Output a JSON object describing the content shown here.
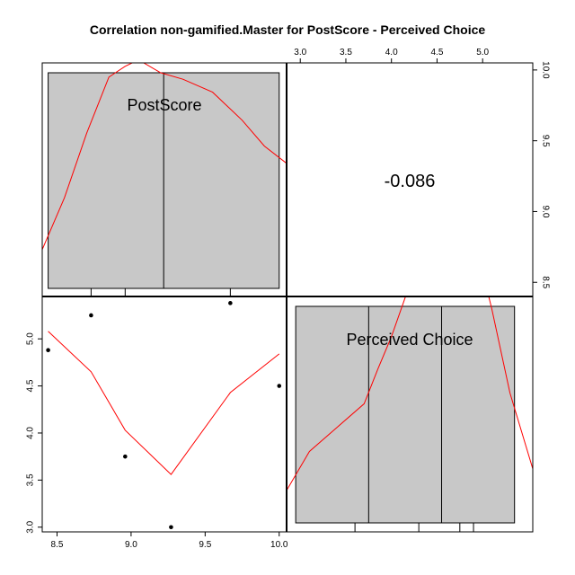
{
  "title": "Correlation non-gamified.Master for PostScore - Perceived Choice",
  "chart_data": {
    "type": "scatter",
    "layout": "pairs-matrix",
    "variables": [
      "PostScore",
      "Perceived Choice"
    ],
    "correlation": "-0.086",
    "scatter": {
      "x_range": [
        8.4,
        10.05
      ],
      "y_range": [
        2.95,
        5.45
      ],
      "x_ticks": [
        8.5,
        9.0,
        9.5,
        10.0
      ],
      "x_tick_labels": [
        "8.5",
        "9.0",
        "9.5",
        "10.0"
      ],
      "y_ticks": [
        3.0,
        3.5,
        4.0,
        4.5,
        5.0
      ],
      "y_tick_labels": [
        "3.0",
        "3.5",
        "4.0",
        "4.5",
        "5.0"
      ],
      "points": [
        {
          "x": 8.44,
          "y": 4.88
        },
        {
          "x": 8.73,
          "y": 5.25
        },
        {
          "x": 8.96,
          "y": 3.75
        },
        {
          "x": 9.27,
          "y": 3.0
        },
        {
          "x": 9.67,
          "y": 5.38
        },
        {
          "x": 10.0,
          "y": 4.5
        }
      ],
      "smooth_line": [
        {
          "x": 8.44,
          "y": 5.08
        },
        {
          "x": 8.73,
          "y": 4.65
        },
        {
          "x": 8.96,
          "y": 4.03
        },
        {
          "x": 9.27,
          "y": 3.56
        },
        {
          "x": 9.67,
          "y": 4.43
        },
        {
          "x": 10.0,
          "y": 4.84
        }
      ]
    },
    "top_axis": {
      "range": [
        2.85,
        5.55
      ],
      "ticks": [
        3.0,
        3.5,
        4.0,
        4.5,
        5.0
      ],
      "tick_labels": [
        "3.0",
        "3.5",
        "4.0",
        "4.5",
        "5.0"
      ]
    },
    "right_axis": {
      "range": [
        8.4,
        10.05
      ],
      "ticks": [
        8.5,
        9.0,
        9.5,
        10.0
      ],
      "tick_labels": [
        "8.5",
        "9.0",
        "9.5",
        "10.0"
      ]
    },
    "postscore_hist": {
      "bar": [
        8.44,
        10.0
      ],
      "divider": 9.22,
      "rug": [
        8.73,
        8.96,
        9.67
      ],
      "density": [
        {
          "x": 8.4,
          "d": 0.18
        },
        {
          "x": 8.55,
          "d": 0.42
        },
        {
          "x": 8.7,
          "d": 0.72
        },
        {
          "x": 8.85,
          "d": 0.98
        },
        {
          "x": 8.96,
          "d": 1.03
        },
        {
          "x": 9.05,
          "d": 1.06
        },
        {
          "x": 9.2,
          "d": 1.0
        },
        {
          "x": 9.35,
          "d": 0.97
        },
        {
          "x": 9.55,
          "d": 0.91
        },
        {
          "x": 9.75,
          "d": 0.78
        },
        {
          "x": 9.9,
          "d": 0.66
        },
        {
          "x": 10.05,
          "d": 0.58
        }
      ]
    },
    "choice_hist": {
      "bar": [
        2.95,
        5.35
      ],
      "dividers": [
        3.75,
        4.55
      ],
      "rug": [
        3.6,
        4.3,
        4.75,
        4.9
      ],
      "density": [
        {
          "x": 2.85,
          "d": 0.15
        },
        {
          "x": 3.1,
          "d": 0.33
        },
        {
          "x": 3.4,
          "d": 0.44
        },
        {
          "x": 3.7,
          "d": 0.55
        },
        {
          "x": 3.85,
          "d": 0.71
        },
        {
          "x": 4.0,
          "d": 0.86
        },
        {
          "x": 4.15,
          "d": 1.04
        },
        {
          "x": 4.3,
          "d": 1.22
        },
        {
          "x": 4.5,
          "d": 1.42
        },
        {
          "x": 4.7,
          "d": 1.5
        },
        {
          "x": 4.9,
          "d": 1.33
        },
        {
          "x": 5.1,
          "d": 0.99
        },
        {
          "x": 5.3,
          "d": 0.6
        },
        {
          "x": 5.55,
          "d": 0.25
        }
      ]
    },
    "colors": {
      "hist_fill": "#c8c8c8",
      "smooth": "#ff0000",
      "points": "#000000",
      "axis": "#000000"
    }
  }
}
